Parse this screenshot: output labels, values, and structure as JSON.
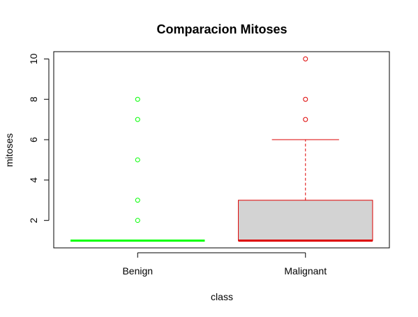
{
  "chart_data": {
    "type": "boxplot",
    "title": "Comparacion Mitoses",
    "xlabel": "class",
    "ylabel": "mitoses",
    "ylim": [
      0.64,
      10.36
    ],
    "yticks": [
      2,
      4,
      6,
      8,
      10
    ],
    "categories": [
      "Benign",
      "Malignant"
    ],
    "series": [
      {
        "category": "Benign",
        "color": "#00ff00",
        "fill": "#ffffff",
        "whisker_low": 1,
        "q1": 1,
        "median": 1,
        "q3": 1,
        "whisker_high": 1,
        "outliers": [
          2,
          3,
          5,
          7,
          8
        ]
      },
      {
        "category": "Malignant",
        "color": "#dd0000",
        "fill": "#d3d3d3",
        "whisker_low": 1,
        "q1": 1,
        "median": 1,
        "q3": 3,
        "whisker_high": 6,
        "outliers": [
          7,
          8,
          10
        ]
      }
    ]
  }
}
